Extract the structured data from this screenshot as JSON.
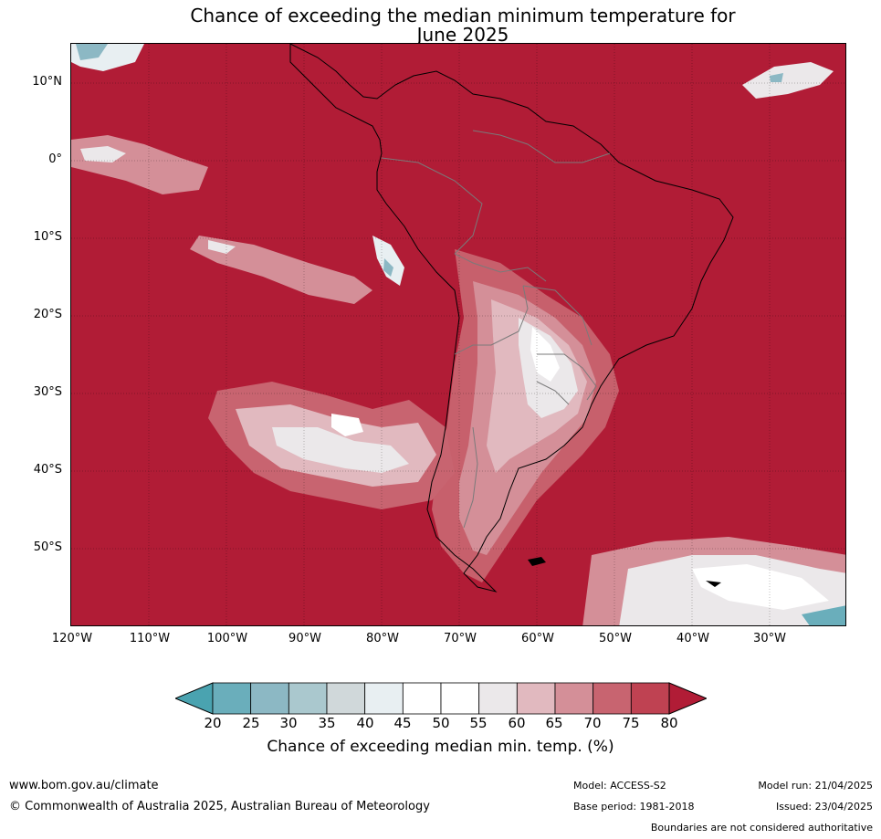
{
  "title": {
    "line1": "Chance of exceeding the median minimum temperature for",
    "line2": "June 2025"
  },
  "map": {
    "background_color": "#b11c36",
    "lat_labels": [
      "10°N",
      "0°",
      "10°S",
      "20°S",
      "30°S",
      "40°S",
      "50°S"
    ],
    "lon_labels": [
      "120°W",
      "110°W",
      "100°W",
      "90°W",
      "80°W",
      "70°W",
      "60°W",
      "50°W",
      "40°W",
      "30°W"
    ]
  },
  "colorbar": {
    "label": "Chance of exceeding median min. temp. (%)",
    "ticks": [
      "20",
      "25",
      "30",
      "35",
      "40",
      "45",
      "50",
      "55",
      "60",
      "65",
      "70",
      "75",
      "80"
    ],
    "colors": {
      "below_20": "#4aa3b0",
      "20_25": "#6aaebb",
      "25_30": "#8cb8c4",
      "30_35": "#aac8ce",
      "35_40": "#d0d8da",
      "40_45": "#e8eff2",
      "45_50": "#ffffff",
      "50_55": "#ffffff",
      "55_60": "#ebe8ea",
      "60_65": "#e1b9bf",
      "65_70": "#d48f98",
      "70_75": "#c86470",
      "75_80": "#bf4252",
      "above_80": "#b11c36"
    }
  },
  "footer": {
    "url": "www.bom.gov.au/climate",
    "copyright": "© Commonwealth of Australia 2025, Australian Bureau of Meteorology",
    "model": "Model: ACCESS-S2",
    "base_period": "Base period: 1981-2018",
    "model_run": "Model run: 21/04/2025",
    "issued": "Issued: 23/04/2025",
    "boundaries_note": "Boundaries are not considered authoritative"
  }
}
